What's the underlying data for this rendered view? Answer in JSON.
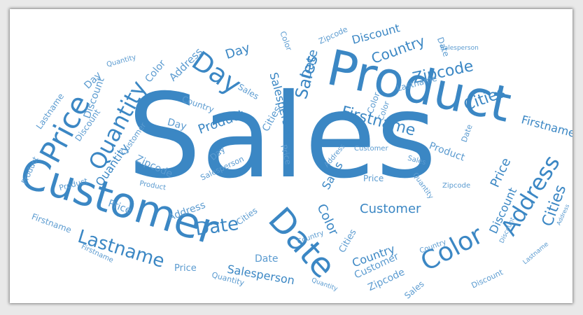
{
  "cloud": {
    "colors": {
      "background": "#ffffff",
      "primary": "#3b87c4",
      "secondary": "#5b9bd0"
    },
    "words": [
      "Sales",
      "Product",
      "Customer",
      "Date",
      "Price",
      "Quantity",
      "Day",
      "Lastname",
      "Color",
      "Address",
      "Firstname",
      "Cities",
      "Country",
      "Zipcode",
      "Discount",
      "Salesperson",
      "Sales",
      "Product",
      "Day",
      "Date",
      "Color",
      "Address",
      "Price",
      "Quantity",
      "Discount",
      "Lastname",
      "Country",
      "Zipcode",
      "Cities",
      "Firstname",
      "Customer",
      "Salesperson",
      "Date",
      "Sales",
      "Color",
      "Price",
      "Day",
      "Product",
      "Quantity",
      "Cities",
      "Address",
      "Discount",
      "Customer",
      "Country",
      "Zipcode",
      "Sales",
      "Date",
      "Day",
      "Product",
      "Price",
      "Quantity",
      "Color",
      "Cities",
      "Country",
      "Address",
      "Date",
      "Customer",
      "Discount",
      "Lastname",
      "Firstname",
      "Salesperson",
      "Zipcode",
      "Sales",
      "Price",
      "Quantity",
      "Day",
      "Product",
      "Address",
      "Cities",
      "Color",
      "Date",
      "Zipcode",
      "Discount",
      "Country",
      "Customer",
      "Salesperson",
      "Firstname",
      "Lastname",
      "Sales",
      "Quantity",
      "Price",
      "Product",
      "Discount",
      "Color"
    ]
  }
}
